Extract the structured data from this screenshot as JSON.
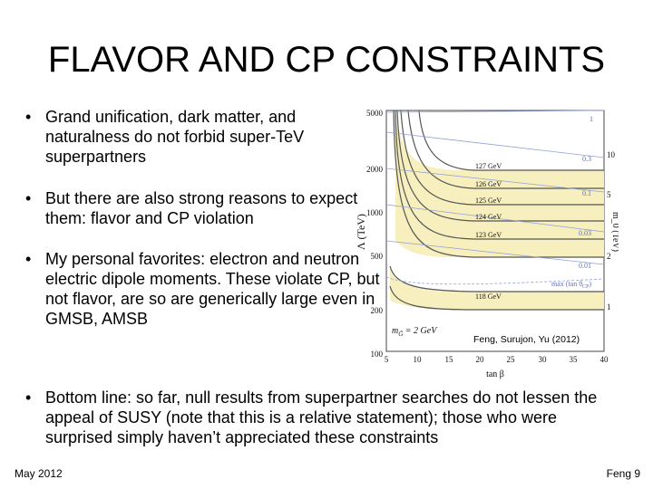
{
  "slide": {
    "title": "FLAVOR AND CP CONSTRAINTS",
    "bullet_marker": "•",
    "bullets": [
      "Grand unification, dark matter, and naturalness do not forbid super-TeV superpartners",
      "But there are also strong reasons to expect them: flavor and CP violation",
      "My personal favorites: electron and neutron electric dipole moments. These violate CP, but not flavor, are so are generically large even in GMSB, AMSB"
    ],
    "bottom_bullet": "Bottom line: so far, null results from superpartner searches do not lessen the appeal of SUSY (note that this is a relative statement); those who were surprised simply haven’t appreciated these constraints",
    "footer_left": "May 2012",
    "footer_right": "Feng 9"
  },
  "figure": {
    "y_left_label": "Λ (TeV)",
    "y_right_label": "m_0 (TeV)",
    "x_label": "tan β",
    "citation": "Feng, Surujon, Yu (2012)",
    "x_ticks": [
      "5",
      "10",
      "15",
      "20",
      "25",
      "30",
      "35",
      "40"
    ],
    "y_left_ticks": [
      "5000",
      "2000",
      "1000",
      "500",
      "200",
      "100"
    ],
    "y_right_ticks": [
      "10",
      "5",
      "2",
      "1"
    ],
    "band_labels": [
      "127 GeV",
      "126 GeV",
      "125 GeV",
      "124 GeV",
      "123 GeV",
      "118 GeV"
    ],
    "phase_labels": [
      "1",
      "0.3",
      "0.1",
      "0.03",
      "0.01"
    ],
    "max_label": "max (tan θ",
    "max_sub": "CP",
    "max_close": ")",
    "annotation": "m",
    "annotation_sub": "G̃",
    "annotation_rest": " = 2 GeV",
    "colors": {
      "band": "#f7efbd",
      "band_line": "#555555",
      "phase_line": "#8fa0d8"
    }
  }
}
